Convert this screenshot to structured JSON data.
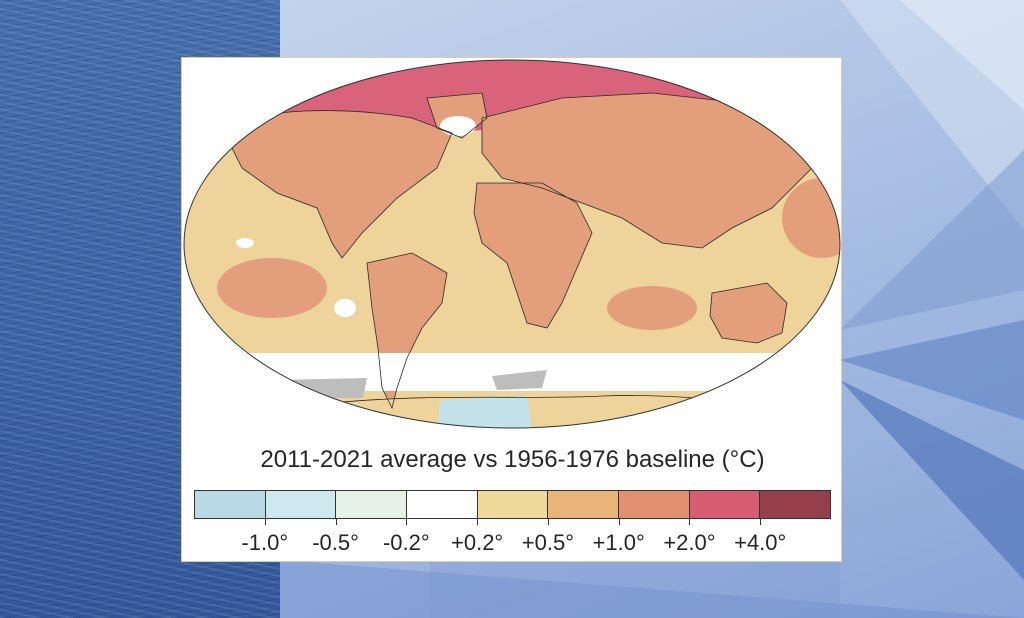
{
  "caption": "2011-2021 average vs 1956-1976 baseline (°C)",
  "colorbar": {
    "bins": [
      "#b9d9e7",
      "#cde8ee",
      "#e6f2e8",
      "#ffffff",
      "#eed99a",
      "#e9b47a",
      "#e2906f",
      "#d65d72",
      "#953e4c"
    ],
    "ticks": [
      "-1.0°",
      "-0.5°",
      "-0.2°",
      "+0.2°",
      "+0.5°",
      "+1.0°",
      "+2.0°",
      "+4.0°"
    ]
  },
  "colors": {
    "arctic_anomaly": "#d8637a",
    "land_anomaly": "#e39f7c",
    "ocean_anomaly": "#eed39a",
    "southern_ocean": "#ffffff",
    "no_data": "#bdbdbd",
    "antarctic_cool": "#c4e2ea"
  }
}
